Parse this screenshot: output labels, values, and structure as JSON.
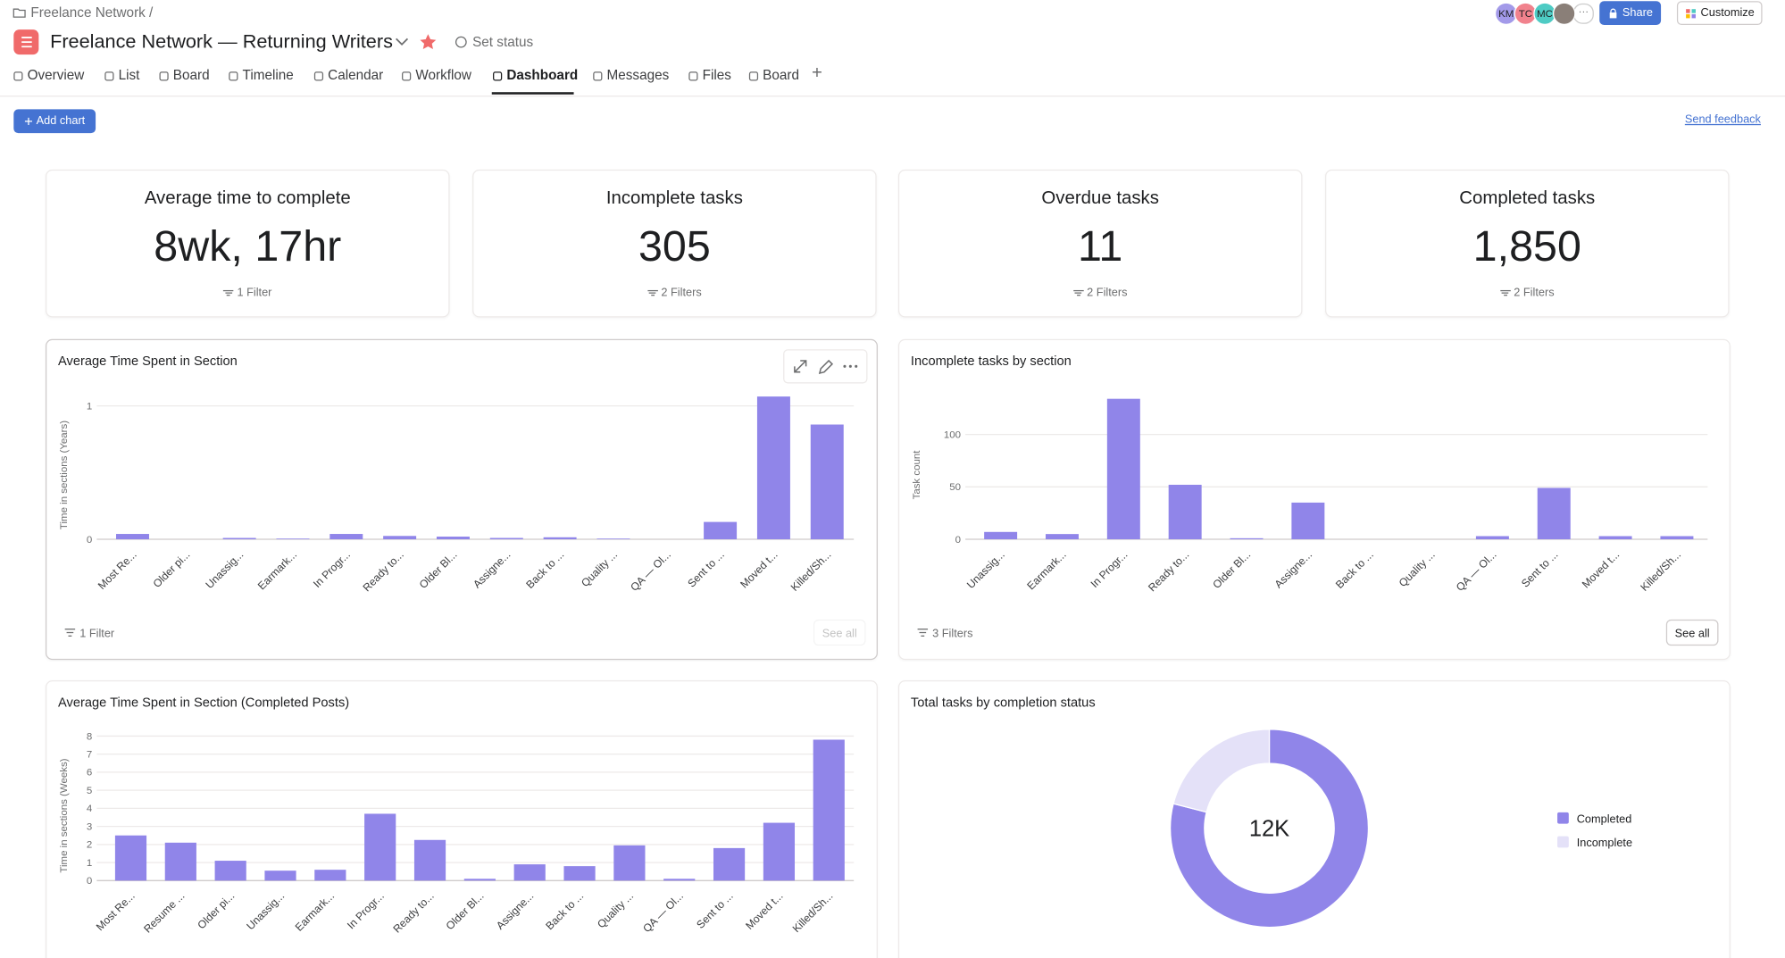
{
  "breadcrumb": "Freelance Network",
  "breadcrumb_separator": "/",
  "project_title": "Freelance Network — Returning Writers",
  "set_status": "Set status",
  "avatars": [
    "KM",
    "TC",
    "MC"
  ],
  "share": "Share",
  "customize": "Customize",
  "tabs": [
    "Overview",
    "List",
    "Board",
    "Timeline",
    "Calendar",
    "Workflow",
    "Dashboard",
    "Messages",
    "Files",
    "Board"
  ],
  "active_tab": 6,
  "add_chart": "Add chart",
  "send_feedback": "Send feedback",
  "kpis": [
    {
      "title": "Average time to complete",
      "value": "8wk, 17hr",
      "filter": "1 Filter"
    },
    {
      "title": "Incomplete tasks",
      "value": "305",
      "filter": "2 Filters"
    },
    {
      "title": "Overdue tasks",
      "value": "11",
      "filter": "2 Filters"
    },
    {
      "title": "Completed tasks",
      "value": "1,850",
      "filter": "2 Filters"
    }
  ],
  "charts": [
    {
      "type": "bar",
      "title": "Average Time Spent in Section",
      "y_label": "Time in sections (Years)",
      "categories": [
        "Most Re...",
        "Older pi...",
        "Unassig...",
        "Earmark...",
        "In Progr...",
        "Ready to...",
        "Older Bl...",
        "Assigne...",
        "Back to ...",
        "Quality ...",
        "QA — Ol...",
        "Sent to ...",
        "Moved t...",
        "Killed/Sh..."
      ],
      "values": [
        0.04,
        0,
        0.01,
        0.005,
        0.04,
        0.025,
        0.02,
        0.01,
        0.015,
        0.005,
        0,
        0.13,
        1.07,
        0.86
      ],
      "ylim": [
        0,
        1.1
      ],
      "yticks": [
        0,
        1
      ],
      "color": "#9085e9",
      "grid": true,
      "filter": "1 Filter",
      "see_all": "See all"
    },
    {
      "type": "bar",
      "title": "Incomplete tasks by section",
      "y_label": "Task count",
      "categories": [
        "Unassig...",
        "Earmark...",
        "In Progr...",
        "Ready to...",
        "Older Bl...",
        "Assigne...",
        "Back to ...",
        "Quality ...",
        "QA — Ol...",
        "Sent to ...",
        "Moved t...",
        "Killed/Sh..."
      ],
      "values": [
        7,
        5,
        134,
        52,
        1,
        35,
        0,
        0,
        3,
        49,
        3,
        3
      ],
      "ylim": [
        0,
        140
      ],
      "yticks": [
        0,
        50,
        100
      ],
      "color": "#9085e9",
      "grid": true,
      "filter": "3 Filters",
      "see_all": "See all"
    },
    {
      "type": "bar",
      "title": "Average Time Spent in Section (Completed Posts)",
      "y_label": "Time in sections (Weeks)",
      "categories": [
        "Most Re...",
        "Resume ...",
        "Older pi...",
        "Unassig...",
        "Earmark...",
        "In Progr...",
        "Ready to...",
        "Older Bl...",
        "Assigne...",
        "Back to ...",
        "Quality ...",
        "QA — Ol...",
        "Sent to ...",
        "Moved t...",
        "Killed/Sh..."
      ],
      "values": [
        2.5,
        2.1,
        1.1,
        0.55,
        0.6,
        3.7,
        2.25,
        0.1,
        0.9,
        0.8,
        1.95,
        0.1,
        1.8,
        3.2,
        7.8
      ],
      "ylim": [
        0,
        8.2
      ],
      "yticks": [
        0,
        1,
        2,
        3,
        4,
        5,
        6,
        7,
        8
      ],
      "color": "#9085e9",
      "grid": true
    },
    {
      "type": "donut",
      "title": "Total tasks by completion status",
      "center_label": "12K",
      "categories": [
        "Completed",
        "Incomplete"
      ],
      "values": [
        79,
        21
      ],
      "colors": [
        "#9085e9",
        "#e4e1f8"
      ]
    }
  ]
}
